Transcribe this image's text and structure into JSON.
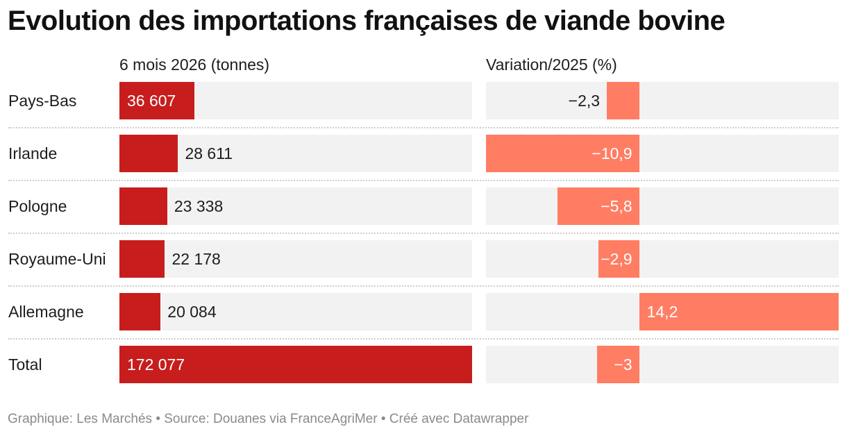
{
  "title": "Evolution des importations françaises de viande bovine",
  "footer": "Graphique: Les Marchés • Source: Douanes via FranceAgriMer • Créé avec Datawrapper",
  "colors": {
    "volume_bar": "#c71d1d",
    "variation_bar": "#ff7d63",
    "track": "#f2f2f2"
  },
  "chart_data": {
    "type": "table",
    "columns": [
      {
        "key": "tonnes",
        "label": "6 mois 2026 (tonnes)",
        "range": [
          0,
          172077
        ]
      },
      {
        "key": "variation",
        "label": "Variation/2025 (%)",
        "range": [
          -10.9,
          14.2
        ]
      }
    ],
    "rows": [
      {
        "label": "Pays-Bas",
        "tonnes": 36607,
        "tonnes_label": "36 607",
        "variation": -2.3,
        "variation_label": "−2,3"
      },
      {
        "label": "Irlande",
        "tonnes": 28611,
        "tonnes_label": "28 611",
        "variation": -10.9,
        "variation_label": "−10,9"
      },
      {
        "label": "Pologne",
        "tonnes": 23338,
        "tonnes_label": "23 338",
        "variation": -5.8,
        "variation_label": "−5,8"
      },
      {
        "label": "Royaume-Uni",
        "tonnes": 22178,
        "tonnes_label": "22 178",
        "variation": -2.9,
        "variation_label": "−2,9"
      },
      {
        "label": "Allemagne",
        "tonnes": 20084,
        "tonnes_label": "20 084",
        "variation": 14.2,
        "variation_label": "14,2"
      },
      {
        "label": "Total",
        "tonnes": 172077,
        "tonnes_label": "172 077",
        "variation": -3,
        "variation_label": "−3"
      }
    ]
  }
}
